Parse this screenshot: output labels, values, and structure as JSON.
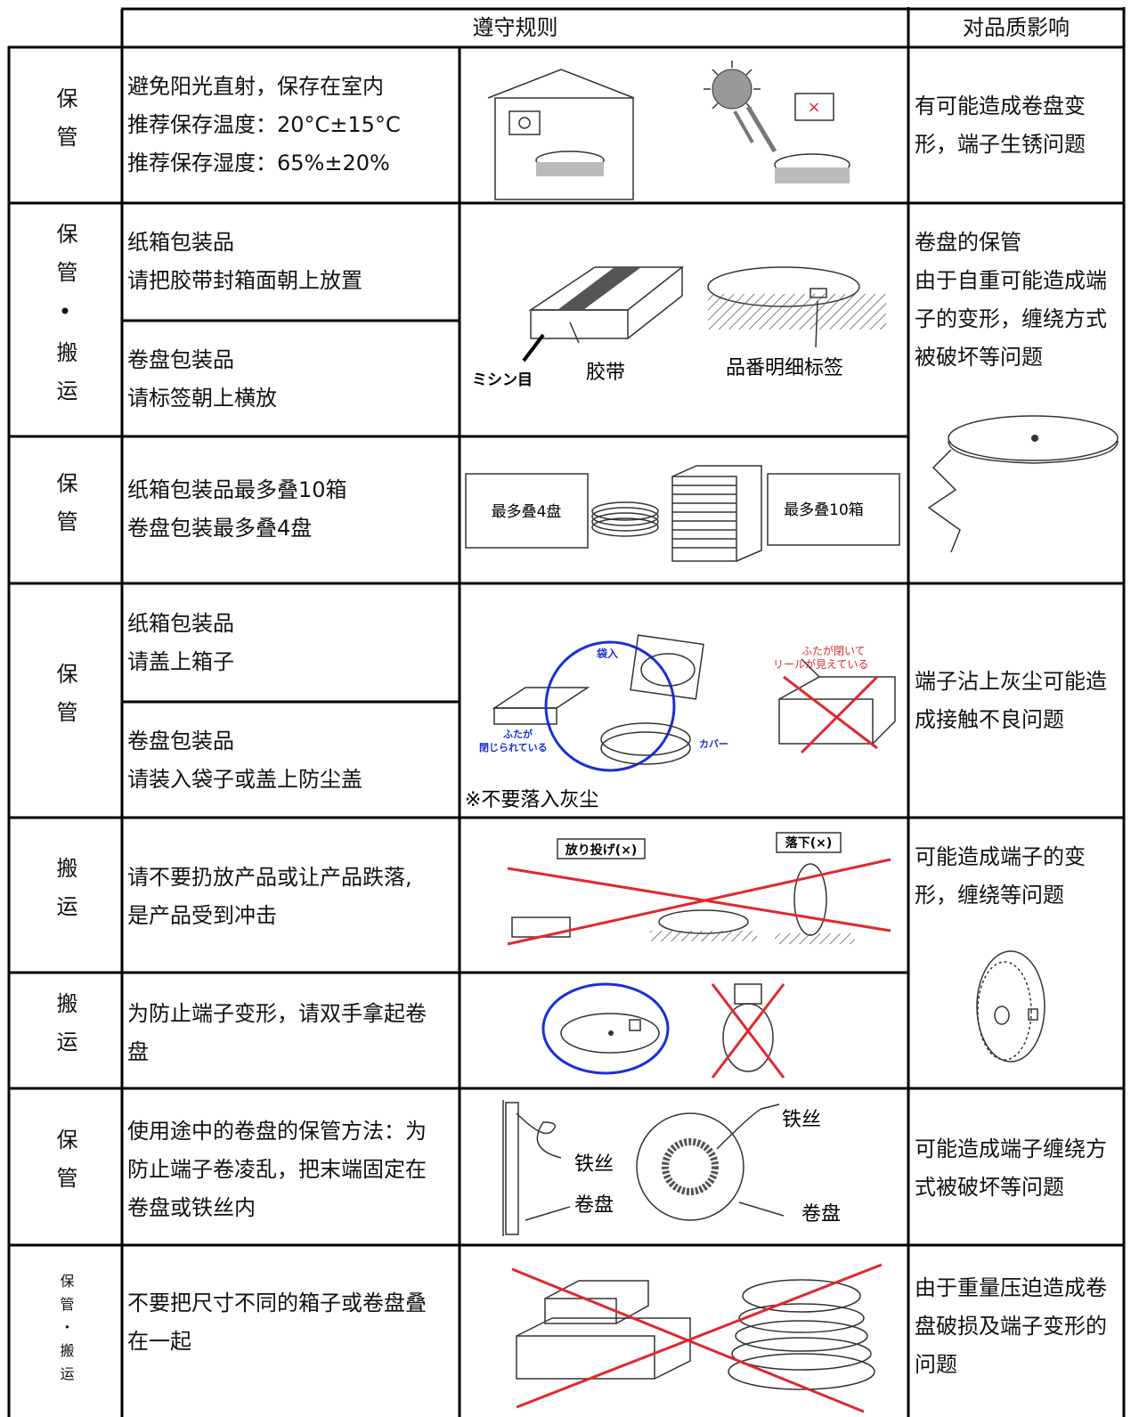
{
  "header": {
    "rules": "遵守规则",
    "impact": "对品质影响"
  },
  "categories": [
    "保管",
    "保管•搬运",
    "保管",
    "保管",
    "搬运",
    "搬运",
    "保管",
    "保管・搬运"
  ],
  "rules": [
    [
      "避免阳光直射，保存在室内",
      "推荐保存温度：20°C±15°C",
      "推荐保存湿度：65%±20%"
    ],
    [
      "纸箱包装品",
      "请把胶带封箱面朝上放置"
    ],
    [
      "卷盘包装品",
      "请标签朝上横放"
    ],
    [
      "纸箱包装品最多叠10箱",
      "卷盘包装最多叠4盘"
    ],
    [
      "纸箱包装品",
      "请盖上箱子"
    ],
    [
      "卷盘包装品",
      "请装入袋子或盖上防尘盖"
    ],
    [
      "请不要扔放产品或让产品跌落,",
      "是产品受到冲击"
    ],
    [
      "为防止端子变形，请双手拿起卷",
      "盘"
    ],
    [
      "使用途中的卷盘的保管方法：为",
      "防止端子卷凌乱，把末端固定在",
      "卷盘或铁丝内"
    ],
    [
      "不要把尺寸不同的箱子或卷盘叠",
      "在一起"
    ]
  ],
  "impacts": [
    [
      "有可能造成卷盘变",
      "形，端子生锈问题"
    ],
    [
      "卷盘的保管",
      "由于自重可能造成端",
      "子的变形，缠绕方式",
      "被破坏等问题"
    ],
    [
      "端子沾上灰尘可能造",
      "成接触不良问题"
    ],
    [
      "可能造成端子的变",
      "形，缠绕等问题"
    ],
    [
      "可能造成端子缠绕方",
      "式被破坏等问题"
    ],
    [
      "由于重量压迫造成卷",
      "盘破损及端子变形的",
      "问题"
    ]
  ],
  "figure_labels": {
    "tape": [
      "ミシン目",
      "胶带",
      "品番明细标签"
    ],
    "stack": [
      "最多叠4盘",
      "最多叠10箱"
    ],
    "dust": [
      "袋入",
      "ふたが閉いて",
      "リールが見えている",
      "ふたが",
      "閉じられている",
      "カバー",
      "※不要落入灰尘"
    ],
    "drop": [
      "放り投げ(×)",
      "落下(×)"
    ],
    "wire": [
      "铁丝",
      "卷盘",
      "铁丝",
      "卷盘"
    ]
  }
}
